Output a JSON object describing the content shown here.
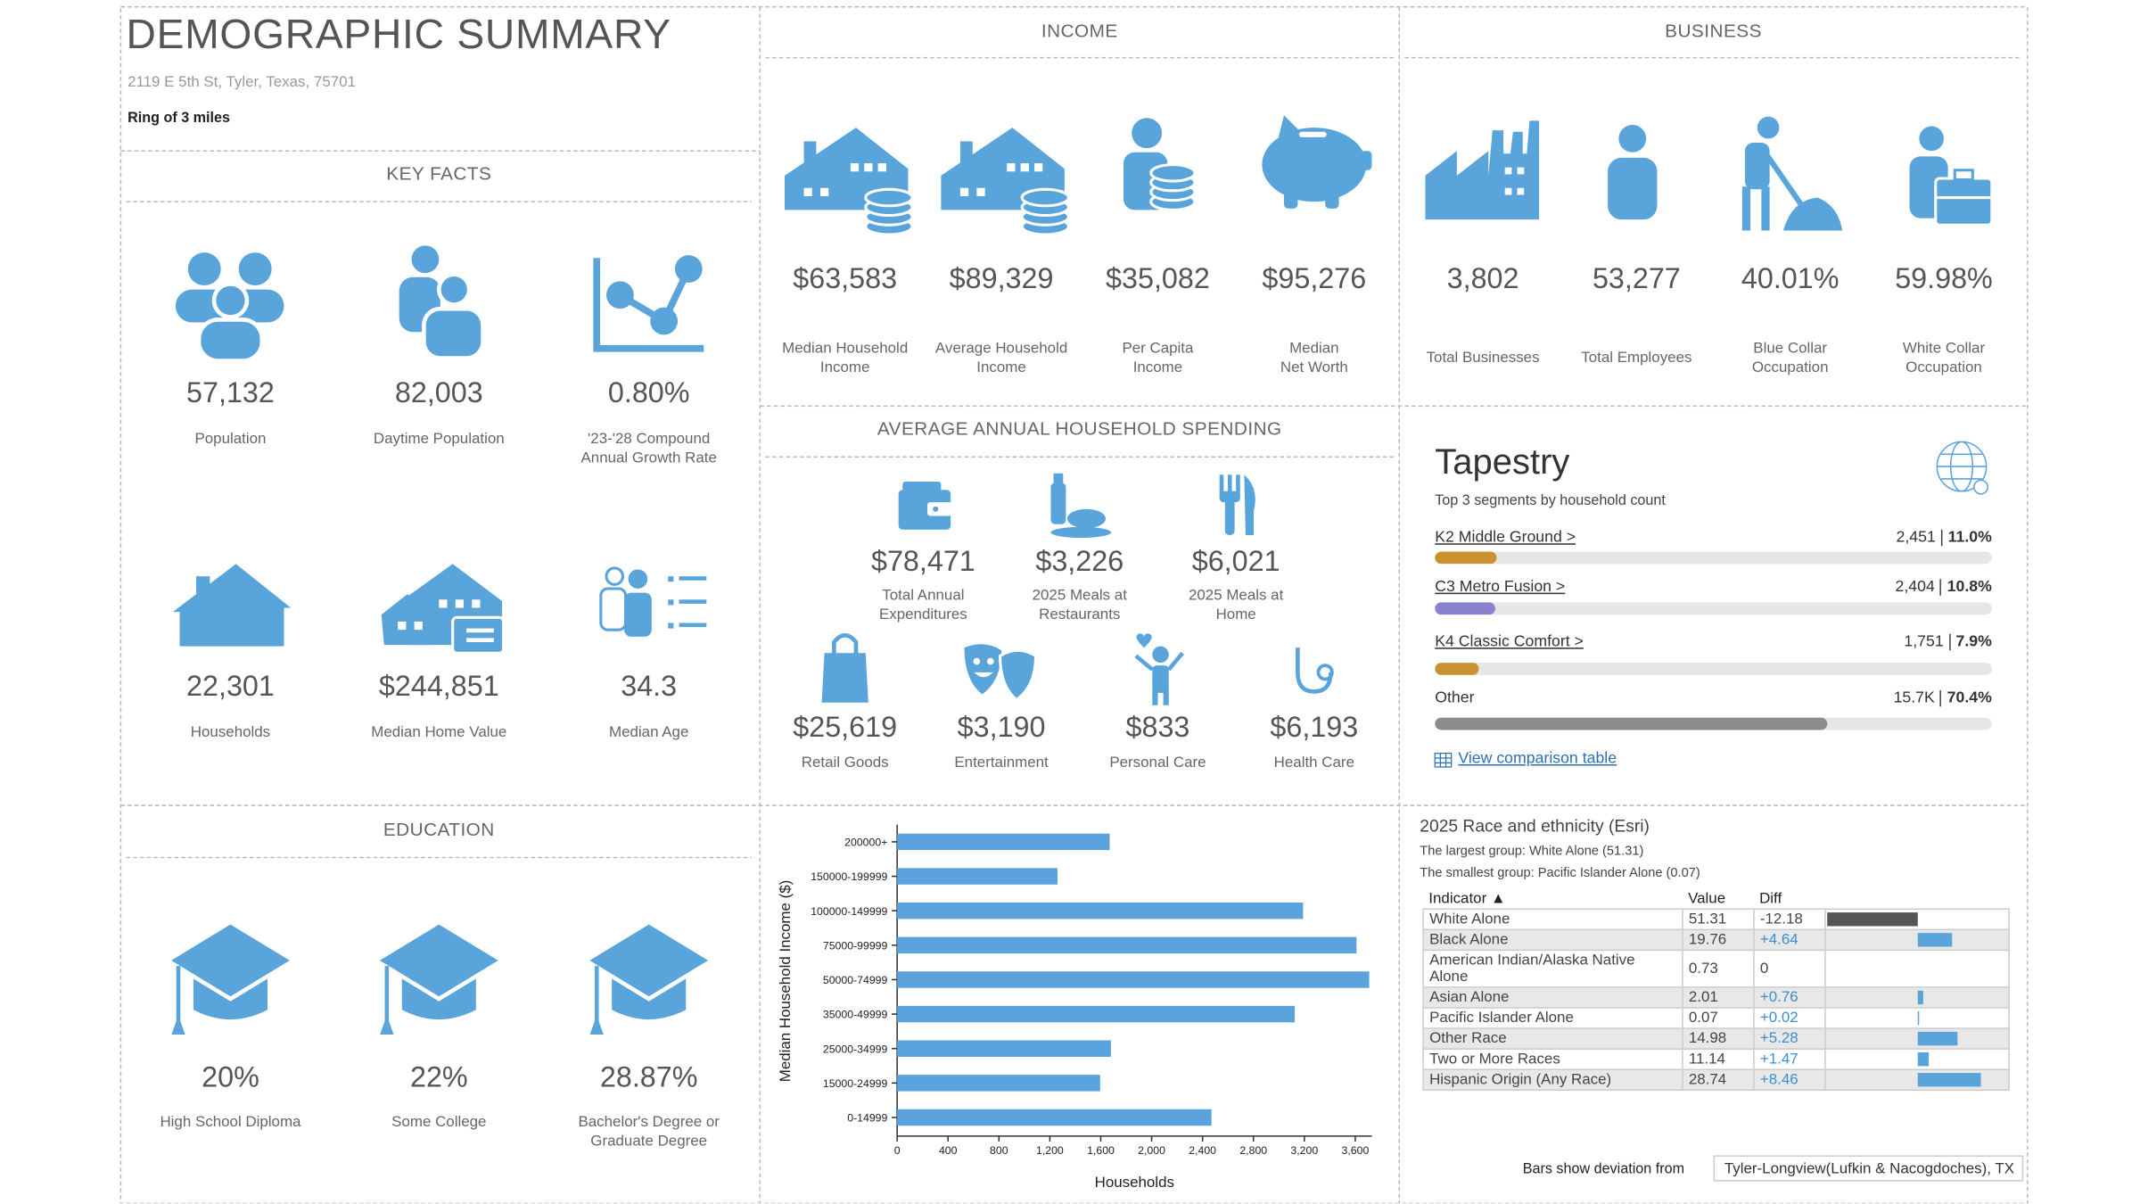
{
  "header": {
    "title": "DEMOGRAPHIC SUMMARY",
    "address": "2119 E 5th St, Tyler, Texas, 75701",
    "ring": "Ring of 3 miles"
  },
  "key_facts": {
    "title": "KEY FACTS",
    "items": [
      {
        "value": "57,132",
        "label": "Population"
      },
      {
        "value": "82,003",
        "label": "Daytime Population"
      },
      {
        "value": "0.80%",
        "label": "'23-'28 Compound Annual Growth Rate"
      },
      {
        "value": "22,301",
        "label": "Households"
      },
      {
        "value": "$244,851",
        "label": "Median Home Value"
      },
      {
        "value": "34.3",
        "label": "Median Age"
      }
    ]
  },
  "income": {
    "title": "INCOME",
    "items": [
      {
        "value": "$63,583",
        "label": "Median Household Income"
      },
      {
        "value": "$89,329",
        "label": "Average Household Income"
      },
      {
        "value": "$35,082",
        "label": "Per Capita Income"
      },
      {
        "value": "$95,276",
        "label": "Median Net Worth"
      }
    ]
  },
  "business": {
    "title": "BUSINESS",
    "items": [
      {
        "value": "3,802",
        "label": "Total Businesses"
      },
      {
        "value": "53,277",
        "label": "Total Employees"
      },
      {
        "value": "40.01%",
        "label": "Blue Collar Occupation"
      },
      {
        "value": "59.98%",
        "label": "White Collar Occupation"
      }
    ]
  },
  "spending": {
    "title": "AVERAGE ANNUAL HOUSEHOLD SPENDING",
    "items": [
      {
        "value": "$78,471",
        "label": "Total Annual Expenditures"
      },
      {
        "value": "$3,226",
        "label": "2025 Meals at Restaurants"
      },
      {
        "value": "$6,021",
        "label": "2025 Meals at Home"
      },
      {
        "value": "$25,619",
        "label": "Retail Goods"
      },
      {
        "value": "$3,190",
        "label": "Entertainment"
      },
      {
        "value": "$833",
        "label": "Personal Care"
      },
      {
        "value": "$6,193",
        "label": "Health Care"
      }
    ]
  },
  "tapestry": {
    "title": "Tapestry",
    "subtitle": "Top 3 segments by household count",
    "link": "View comparison table",
    "segments": [
      {
        "name": "K2 Middle Ground >",
        "count": "2,451",
        "share": 11.0,
        "share_label": "11.0%",
        "color": "#c8922e"
      },
      {
        "name": "C3 Metro Fusion >",
        "count": "2,404",
        "share": 10.8,
        "share_label": "10.8%",
        "color": "#8a80d0"
      },
      {
        "name": "K4 Classic Comfort >",
        "count": "1,751",
        "share": 7.9,
        "share_label": "7.9%",
        "color": "#c8922e"
      },
      {
        "name": "Other",
        "count": "15.7K",
        "share": 70.4,
        "share_label": "70.4%",
        "color": "#8c8c8c"
      }
    ]
  },
  "education": {
    "title": "EDUCATION",
    "items": [
      {
        "value": "20%",
        "label": "High School Diploma"
      },
      {
        "value": "22%",
        "label": "Some College"
      },
      {
        "value": "28.87%",
        "label": "Bachelor's Degree or Graduate Degree"
      }
    ]
  },
  "race": {
    "title": "2025 Race and ethnicity (Esri)",
    "largest": "The largest group: White Alone (51.31)",
    "smallest": "The smallest group: Pacific Islander Alone (0.07)",
    "columns": [
      "Indicator ▲",
      "Value",
      "Diff"
    ],
    "rows": [
      {
        "indicator": "White Alone",
        "value": 51.31,
        "diff": -12.18,
        "diff_label": "-12.18"
      },
      {
        "indicator": "Black Alone",
        "value": 19.76,
        "diff": 4.64,
        "diff_label": "+4.64"
      },
      {
        "indicator": "American Indian/Alaska Native Alone",
        "value": 0.73,
        "diff": 0,
        "diff_label": "0"
      },
      {
        "indicator": "Asian Alone",
        "value": 2.01,
        "diff": 0.76,
        "diff_label": "+0.76"
      },
      {
        "indicator": "Pacific Islander Alone",
        "value": 0.07,
        "diff": 0.02,
        "diff_label": "+0.02"
      },
      {
        "indicator": "Other Race",
        "value": 14.98,
        "diff": 5.28,
        "diff_label": "+5.28"
      },
      {
        "indicator": "Two or More Races",
        "value": 11.14,
        "diff": 1.47,
        "diff_label": "+1.47"
      },
      {
        "indicator": "Hispanic Origin (Any Race)",
        "value": 28.74,
        "diff": 8.46,
        "diff_label": "+8.46"
      }
    ],
    "footer": "Bars show deviation from",
    "region": "Tyler-Longview(Lufkin & Nacogdoches), TX"
  },
  "chart_data": {
    "type": "bar",
    "orientation": "horizontal",
    "categories": [
      "200000+",
      "150000-199999",
      "100000-149999",
      "75000-99999",
      "50000-74999",
      "35000-49999",
      "25000-34999",
      "15000-24999",
      "0-14999"
    ],
    "values": [
      1670,
      1260,
      3190,
      3610,
      3710,
      3125,
      1680,
      1595,
      2470
    ],
    "color": "#5ba3dc",
    "xlabel": "Households",
    "ylabel": "Median Household Income ($)",
    "xlim": [
      0,
      3730
    ],
    "xticks": [
      0,
      400,
      800,
      {
        "value": 1200,
        "label": "1,200"
      },
      {
        "value": 1600,
        "label": "1,600"
      },
      {
        "value": 2000,
        "label": "2,000"
      },
      {
        "value": 2400,
        "label": "2,400"
      },
      {
        "value": 2800,
        "label": "2,800"
      },
      {
        "value": 3200,
        "label": "3,200"
      },
      {
        "value": 3600,
        "label": "3,600"
      }
    ],
    "grid": false
  }
}
